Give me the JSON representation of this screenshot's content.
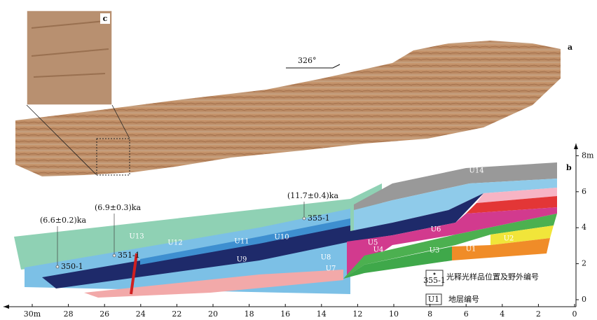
{
  "panels": {
    "a": "a",
    "b": "b",
    "c": "c"
  },
  "bearing": "326°",
  "ages": [
    "(6.6±0.2)ka",
    "(6.9±0.3)ka",
    "(11.7±0.4)ka"
  ],
  "samples": [
    "350-1",
    "351-1",
    "355-1"
  ],
  "units": [
    "U14",
    "U13",
    "U12",
    "U11",
    "U10",
    "U9",
    "U8",
    "U7",
    "U6",
    "U5",
    "U4",
    "U3",
    "U1",
    "U2"
  ],
  "legend": {
    "sample_icon": "355-1",
    "sample_text": "光释光样品位置及野外编号",
    "unit_icon": "U1",
    "unit_text": "地层编号"
  },
  "x_axis": {
    "ticks": [
      {
        "value": 30,
        "label": "30m"
      },
      28,
      26,
      24,
      22,
      20,
      18,
      16,
      14,
      12,
      10,
      8,
      6,
      4,
      2,
      0
    ]
  },
  "y_axis": {
    "ticks": [
      0,
      2,
      4,
      6,
      {
        "value": 8,
        "label": "8m"
      }
    ]
  }
}
